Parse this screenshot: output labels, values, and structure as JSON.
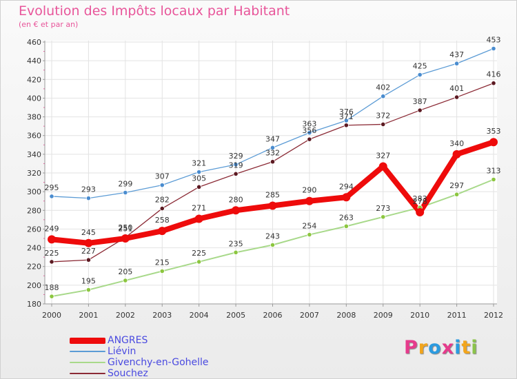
{
  "header": {
    "title": "Evolution des Impôts locaux par Habitant",
    "subtitle": "(en € et par an)"
  },
  "logo": {
    "text": "Proxiti",
    "letter_colors": [
      "#e63b8c",
      "#f2a51c",
      "#2b9be0",
      "#e63b8c",
      "#2b9be0",
      "#f2a51c",
      "#8bc34a"
    ]
  },
  "chart_data": {
    "type": "line",
    "title": "Evolution des Impôts locaux par Habitant",
    "subtitle": "(en € et par an)",
    "xlabel": "",
    "ylabel": "",
    "x": [
      2000,
      2001,
      2002,
      2003,
      2004,
      2005,
      2006,
      2007,
      2008,
      2009,
      2010,
      2011,
      2012
    ],
    "ylim": [
      180,
      460
    ],
    "yticks": [
      180,
      200,
      220,
      240,
      260,
      280,
      300,
      320,
      340,
      360,
      380,
      400,
      420,
      440,
      460
    ],
    "grid": true,
    "legend_position": "bottom-left",
    "series": [
      {
        "name": "Liévin",
        "color": "#5b9bd5",
        "marker": "#4a8ccf",
        "width": 1.3,
        "values": [
          295,
          293,
          299,
          307,
          321,
          329,
          347,
          363,
          376,
          402,
          425,
          437,
          453
        ]
      },
      {
        "name": "Souchez",
        "color": "#8b2a35",
        "marker": "#5c1a22",
        "width": 1.3,
        "values": [
          225,
          227,
          251,
          282,
          305,
          319,
          332,
          356,
          371,
          372,
          387,
          401,
          416
        ]
      },
      {
        "name": "Givenchy-en-Gohelle",
        "color": "#a8d98a",
        "marker": "#8cc63f",
        "width": 2,
        "values": [
          188,
          195,
          205,
          215,
          225,
          235,
          243,
          254,
          263,
          273,
          283,
          297,
          313
        ]
      },
      {
        "name": "ANGRES",
        "color": "#ee0b0b",
        "marker": "#ee0b0b",
        "width": 8,
        "values": [
          249,
          245,
          250,
          258,
          271,
          280,
          285,
          290,
          294,
          327,
          278,
          340,
          353
        ]
      }
    ],
    "legend_order": [
      "ANGRES",
      "Liévin",
      "Givenchy-en-Gohelle",
      "Souchez"
    ]
  }
}
